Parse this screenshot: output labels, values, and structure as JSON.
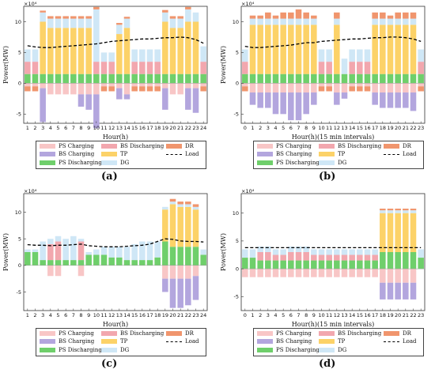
{
  "colors": {
    "ps_charging": "#f8c6c6",
    "bs_discharging": "#f2a7ae",
    "dr": "#f0956d",
    "bs_charging": "#b3a6de",
    "tp": "#fcd268",
    "load": "#000000",
    "ps_discharging": "#6fcf6b",
    "dg": "#cfe7f6"
  },
  "legend": [
    {
      "key": "ps_charging",
      "label": "PS Charging"
    },
    {
      "key": "bs_discharging",
      "label": "BS Discharging"
    },
    {
      "key": "dr",
      "label": "DR"
    },
    {
      "key": "bs_charging",
      "label": "BS Charging"
    },
    {
      "key": "tp",
      "label": "TP"
    },
    {
      "key": "load",
      "label": "Load",
      "line": true
    },
    {
      "key": "ps_discharging",
      "label": "PS Discharging"
    },
    {
      "key": "dg",
      "label": "DG"
    }
  ],
  "chart_data": [
    {
      "type": "bar",
      "caption": "(a)",
      "ylabel": "Power(MW)",
      "xlabel": "Hour(h)",
      "multiplier": "×10⁴",
      "ylim": [
        -6.5,
        12.5
      ],
      "yticks": [
        -5,
        0,
        5,
        10
      ],
      "xticks": [
        "1",
        "2",
        "3",
        "4",
        "5",
        "6",
        "7",
        "8",
        "9",
        "10",
        "11",
        "12",
        "13",
        "14",
        "15",
        "16",
        "17",
        "18",
        "19",
        "20",
        "21",
        "22",
        "23",
        "24"
      ],
      "x": [
        1,
        2,
        3,
        4,
        5,
        6,
        7,
        8,
        9,
        10,
        11,
        12,
        13,
        14,
        15,
        16,
        17,
        18,
        19,
        20,
        21,
        22,
        23,
        24
      ],
      "series": {
        "ps_discharging": [
          1.5,
          1.5,
          1.5,
          1.5,
          1.5,
          1.5,
          1.5,
          1.5,
          1.5,
          1.5,
          1.5,
          1.5,
          1.5,
          1.5,
          1.5,
          1.5,
          1.5,
          1.5,
          1.5,
          1.5,
          1.5,
          1.5,
          1.5,
          1.5
        ],
        "bs_discharging": [
          2.0,
          2.0,
          0,
          0,
          0,
          0,
          0,
          0,
          0,
          2.0,
          2.0,
          2.0,
          0,
          0,
          2.0,
          2.0,
          2.0,
          2.0,
          0,
          0,
          0,
          0,
          0,
          2.0
        ],
        "tp": [
          0,
          0,
          8.5,
          7.5,
          7.5,
          7.5,
          7.5,
          7.5,
          7.5,
          0,
          0,
          0,
          6.5,
          7.5,
          0,
          0,
          0,
          0,
          8.5,
          7.5,
          7.5,
          8.5,
          8.5,
          0
        ],
        "dg": [
          2.0,
          2.0,
          1.5,
          1.5,
          1.5,
          1.5,
          1.5,
          1.5,
          1.5,
          8.5,
          1.5,
          1.5,
          1.5,
          1.5,
          2.0,
          2.0,
          2.0,
          2.0,
          1.5,
          1.5,
          1.5,
          2.0,
          1.5,
          2.5
        ],
        "dr": [
          0,
          0,
          0.3,
          0.4,
          0.4,
          0.4,
          0.4,
          0.4,
          0.4,
          0.4,
          0,
          0,
          0.3,
          0.3,
          0,
          0,
          0,
          0,
          0.4,
          0.4,
          0.4,
          0.4,
          0,
          0
        ],
        "ps_charging": [
          -0.5,
          -0.5,
          -0.8,
          -1.8,
          -1.8,
          -1.8,
          -1.8,
          -1.8,
          -1.8,
          -1.8,
          -0.5,
          -0.5,
          -0.8,
          -1.8,
          -0.5,
          -0.5,
          -0.5,
          -0.5,
          -0.8,
          -1.8,
          -1.8,
          -0.8,
          -0.8,
          -0.5
        ],
        "bs_charging": [
          0,
          0,
          -5.5,
          0,
          0,
          0,
          0,
          -2.0,
          -2.5,
          -5.5,
          0,
          0,
          -1.8,
          -0.8,
          0,
          0,
          0,
          0,
          -3.5,
          0,
          0,
          -3.5,
          -4.0,
          0
        ],
        "dr_neg": [
          -0.8,
          -0.8,
          0,
          0,
          0,
          0,
          0,
          0,
          0,
          0,
          -0.8,
          -0.8,
          0,
          0,
          -0.8,
          -0.8,
          -0.8,
          -0.8,
          0,
          0,
          0,
          0,
          0,
          -0.8
        ]
      },
      "load": [
        6.1,
        5.9,
        5.8,
        5.8,
        5.9,
        6.0,
        6.1,
        6.2,
        6.3,
        6.4,
        6.6,
        6.8,
        6.9,
        7.0,
        7.1,
        7.2,
        7.2,
        7.3,
        7.4,
        7.4,
        7.5,
        7.4,
        7.1,
        6.5
      ]
    },
    {
      "type": "bar",
      "caption": "(b)",
      "ylabel": "Power(MW)",
      "xlabel": "Hour(h)(15 min intervals)",
      "multiplier": "×10⁴",
      "ylim": [
        -6.5,
        12.5
      ],
      "yticks": [
        -5,
        0,
        5,
        10
      ],
      "xticks": [
        "0",
        "1",
        "2",
        "3",
        "4",
        "5",
        "6",
        "7",
        "8",
        "9",
        "10",
        "11",
        "12",
        "13",
        "14",
        "15",
        "16",
        "17",
        "18",
        "19",
        "20",
        "21",
        "22",
        "23"
      ],
      "x": [
        0,
        1,
        2,
        3,
        4,
        5,
        6,
        7,
        8,
        9,
        10,
        11,
        12,
        13,
        14,
        15,
        16,
        17,
        18,
        19,
        20,
        21,
        22,
        23
      ],
      "series": {
        "ps_discharging": [
          1.5,
          1.5,
          1.5,
          1.5,
          1.5,
          1.5,
          1.5,
          1.5,
          1.5,
          1.5,
          1.5,
          1.5,
          1.5,
          1.5,
          1.5,
          1.5,
          1.5,
          1.5,
          1.5,
          1.5,
          1.5,
          1.5,
          1.5,
          1.5
        ],
        "bs_discharging": [
          2.0,
          0,
          0,
          0,
          0,
          0,
          0,
          0,
          0,
          0,
          2.0,
          2.0,
          0,
          0,
          2.0,
          2.0,
          2.0,
          0,
          0,
          0,
          0,
          0,
          0,
          2.0
        ],
        "tp": [
          0,
          8.0,
          8.0,
          8.0,
          8.0,
          8.0,
          8.0,
          8.0,
          8.0,
          8.0,
          0,
          0,
          8.0,
          0,
          0,
          0,
          0,
          8.0,
          8.0,
          8.0,
          8.0,
          8.0,
          8.0,
          0
        ],
        "dg": [
          2.0,
          1.0,
          1.0,
          1.0,
          1.0,
          1.0,
          1.0,
          1.0,
          1.0,
          1.0,
          2.0,
          2.0,
          1.0,
          2.5,
          2.0,
          2.0,
          2.0,
          1.0,
          1.0,
          1.0,
          1.0,
          1.0,
          1.0,
          2.0
        ],
        "dr": [
          0,
          0.5,
          0.5,
          1.0,
          0.5,
          1.0,
          1.0,
          1.5,
          1.0,
          0.5,
          0,
          0,
          1.0,
          0,
          0,
          0,
          0,
          1.0,
          1.0,
          0.5,
          1.0,
          1.0,
          1.0,
          0
        ],
        "ps_charging": [
          -0.5,
          -1.5,
          -1.5,
          -1.5,
          -1.5,
          -1.5,
          -1.5,
          -1.5,
          -1.5,
          -1.5,
          -0.5,
          -0.5,
          -1.5,
          -1.5,
          -0.5,
          -0.5,
          -0.5,
          -1.5,
          -1.5,
          -1.5,
          -1.5,
          -1.5,
          -1.5,
          -0.5
        ],
        "bs_charging": [
          0,
          -2.0,
          -2.5,
          -2.5,
          -3.5,
          -3.5,
          -4.5,
          -4.5,
          -3.5,
          -2.0,
          0,
          0,
          -2.0,
          -1.0,
          0,
          0,
          0,
          -2.0,
          -2.5,
          -2.5,
          -2.5,
          -2.5,
          -3.0,
          0
        ],
        "dr_neg": [
          -0.8,
          0,
          0,
          0,
          0,
          0,
          0,
          0,
          0,
          0,
          -0.8,
          -0.8,
          0,
          0,
          -0.8,
          -0.8,
          -0.8,
          0,
          0,
          0,
          0,
          0,
          0,
          -0.8
        ]
      },
      "load": [
        6.0,
        5.8,
        5.8,
        5.9,
        6.0,
        6.1,
        6.2,
        6.4,
        6.6,
        6.6,
        6.8,
        6.9,
        7.0,
        7.1,
        7.2,
        7.2,
        7.3,
        7.4,
        7.4,
        7.5,
        7.5,
        7.4,
        7.2,
        6.8
      ]
    },
    {
      "type": "bar",
      "caption": "(c)",
      "ylabel": "Power(MW)",
      "xlabel": "Hour(h)",
      "multiplier": "×10⁴",
      "ylim": [
        -8.5,
        13.5
      ],
      "yticks": [
        -5,
        0,
        5,
        10
      ],
      "xticks": [
        "1",
        "2",
        "3",
        "4",
        "5",
        "6",
        "7",
        "8",
        "9",
        "10",
        "11",
        "12",
        "13",
        "14",
        "15",
        "16",
        "17",
        "18",
        "19",
        "20",
        "21",
        "22",
        "23",
        "24"
      ],
      "x": [
        1,
        2,
        3,
        4,
        5,
        6,
        7,
        8,
        9,
        10,
        11,
        12,
        13,
        14,
        15,
        16,
        17,
        18,
        19,
        20,
        21,
        22,
        23,
        24
      ],
      "series": {
        "ps_discharging": [
          2.5,
          2.5,
          1.0,
          1.0,
          1.0,
          1.0,
          1.0,
          1.0,
          2.0,
          2.0,
          2.0,
          1.5,
          1.5,
          1.0,
          1.0,
          1.0,
          1.0,
          1.5,
          4.5,
          3.5,
          3.5,
          3.5,
          3.5,
          2.0
        ],
        "bs_discharging": [
          0,
          0,
          0,
          3.0,
          3.5,
          0,
          0,
          3.5,
          0,
          0,
          0,
          0,
          0,
          0,
          0,
          0,
          0,
          0,
          0,
          0,
          0,
          0,
          0,
          0
        ],
        "tp": [
          0,
          0,
          0,
          0,
          0,
          0,
          0,
          0,
          0,
          0,
          0,
          0,
          0,
          0,
          0,
          0,
          0,
          0,
          6.0,
          8.0,
          7.5,
          7.5,
          7.0,
          0
        ],
        "dg": [
          0.5,
          0.5,
          3.5,
          1.0,
          1.0,
          4.0,
          4.5,
          0.5,
          0.5,
          1.0,
          1.5,
          2.0,
          2.0,
          2.5,
          3.0,
          3.5,
          3.5,
          3.0,
          0.5,
          0.5,
          0.5,
          0.5,
          0.5,
          1.0
        ],
        "dr": [
          0,
          0,
          0,
          0,
          0,
          0,
          0,
          0,
          0,
          0,
          0,
          0,
          0,
          0,
          0,
          0,
          0,
          0,
          0,
          0.5,
          0.5,
          0.5,
          0.5,
          0
        ],
        "ps_charging": [
          0,
          0,
          0,
          -2.0,
          -2.0,
          0,
          0,
          -2.0,
          0,
          0,
          0,
          0,
          0,
          0,
          0,
          0,
          0,
          0,
          -2.5,
          -2.5,
          -2.5,
          -2.5,
          -2.0,
          0
        ],
        "bs_charging": [
          0,
          0,
          0,
          0,
          0,
          0,
          0,
          0,
          0,
          0,
          0,
          0,
          0,
          0,
          0,
          0,
          0,
          0,
          -2.5,
          -5.5,
          -5.5,
          -5.0,
          -4.5,
          0
        ],
        "dr_neg": [
          0,
          0,
          0,
          0,
          0,
          0,
          0,
          0,
          0,
          0,
          0,
          0,
          0,
          0,
          0,
          0,
          0,
          0,
          0,
          0,
          0,
          0,
          0,
          0
        ]
      },
      "load": [
        3.9,
        3.8,
        3.8,
        3.7,
        3.8,
        3.8,
        3.9,
        4.0,
        3.7,
        3.6,
        3.5,
        3.5,
        3.5,
        3.6,
        3.7,
        3.8,
        4.0,
        4.5,
        5.0,
        4.9,
        4.6,
        4.5,
        4.5,
        4.4
      ]
    },
    {
      "type": "bar",
      "caption": "(d)",
      "ylabel": "Power(MW)",
      "xlabel": "Hour(h)(15 min intervals)",
      "multiplier": "×10⁴",
      "ylim": [
        -7.5,
        13.5
      ],
      "yticks": [
        -5,
        0,
        5,
        10
      ],
      "xticks": [
        "0",
        "1",
        "2",
        "3",
        "4",
        "5",
        "6",
        "7",
        "8",
        "9",
        "10",
        "11",
        "12",
        "13",
        "14",
        "15",
        "16",
        "17",
        "18",
        "19",
        "20",
        "21",
        "22",
        "23"
      ],
      "x": [
        0,
        1,
        2,
        3,
        4,
        5,
        6,
        7,
        8,
        9,
        10,
        11,
        12,
        13,
        14,
        15,
        16,
        17,
        18,
        19,
        20,
        21,
        22,
        23
      ],
      "series": {
        "ps_discharging": [
          2.0,
          2.0,
          1.5,
          1.5,
          1.5,
          1.5,
          1.5,
          1.5,
          1.5,
          1.5,
          1.5,
          1.5,
          1.5,
          1.5,
          1.5,
          1.5,
          1.5,
          1.5,
          3.0,
          3.0,
          3.0,
          3.0,
          3.0,
          2.0
        ],
        "bs_discharging": [
          0,
          0,
          1.5,
          1.5,
          1.0,
          1.0,
          1.5,
          1.5,
          1.5,
          1.0,
          1.0,
          1.0,
          1.0,
          1.0,
          1.0,
          1.0,
          1.0,
          1.0,
          0,
          0,
          0,
          0,
          0,
          0
        ],
        "tp": [
          0,
          0,
          0,
          0,
          0,
          0,
          0,
          0,
          0,
          0,
          0,
          0,
          0,
          0,
          0,
          0,
          0,
          0,
          7.0,
          7.0,
          7.0,
          7.0,
          7.0,
          0
        ],
        "dg": [
          1.5,
          1.5,
          1.0,
          1.0,
          1.0,
          1.0,
          1.0,
          1.0,
          1.0,
          1.0,
          1.0,
          1.0,
          1.0,
          1.0,
          1.0,
          1.0,
          1.0,
          1.0,
          0.5,
          0.5,
          0.5,
          0.5,
          0.5,
          1.5
        ],
        "dr": [
          0,
          0,
          0,
          0,
          0,
          0,
          0,
          0,
          0,
          0,
          0,
          0,
          0,
          0,
          0,
          0,
          0,
          0,
          0.3,
          0.3,
          0.3,
          0.3,
          0.3,
          0
        ],
        "ps_charging": [
          -1.5,
          -1.5,
          -1.5,
          -1.5,
          -1.5,
          -1.5,
          -1.5,
          -1.5,
          -1.5,
          -1.5,
          -1.5,
          -1.5,
          -1.5,
          -1.5,
          -1.5,
          -1.5,
          -1.5,
          -1.5,
          -2.5,
          -2.5,
          -2.5,
          -2.5,
          -2.5,
          0
        ],
        "bs_charging": [
          0,
          0,
          0,
          0,
          0,
          0,
          0,
          0,
          0,
          0,
          0,
          0,
          0,
          0,
          0,
          0,
          0,
          0,
          -3.0,
          -3.0,
          -3.0,
          -3.0,
          -3.0,
          0
        ],
        "dr_neg": [
          0,
          0,
          0,
          0,
          0,
          0,
          0,
          0,
          0,
          0,
          0,
          0,
          0,
          0,
          0,
          0,
          0,
          0,
          0,
          0,
          0,
          0,
          0,
          0
        ]
      },
      "load": [
        3.8,
        3.8,
        3.8,
        3.8,
        3.8,
        3.8,
        3.8,
        3.8,
        3.8,
        3.8,
        3.8,
        3.8,
        3.8,
        3.8,
        3.8,
        3.8,
        3.8,
        3.8,
        3.8,
        3.8,
        3.8,
        3.8,
        3.8,
        3.8
      ]
    }
  ]
}
